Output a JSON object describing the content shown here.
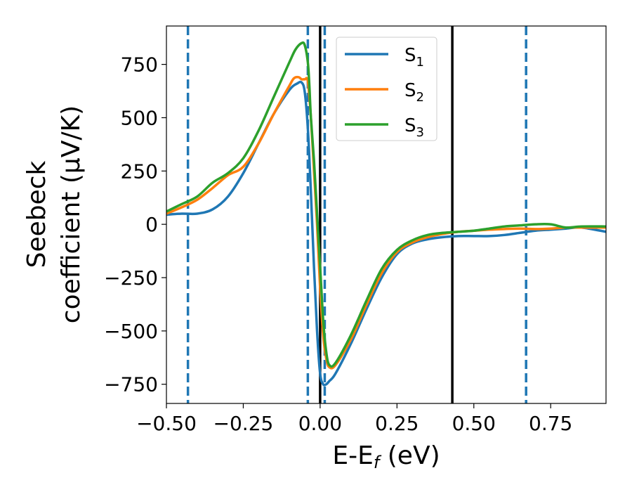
{
  "chart_data": {
    "type": "line",
    "xlabel": "E-E",
    "xlabel_sub": "f",
    "xlabel_unit": " (eV)",
    "ylabel_line1": "Seebeck",
    "ylabel_line2": "coefficient  (μV/K)",
    "xlim": [
      -0.5,
      0.93
    ],
    "ylim": [
      -840,
      930
    ],
    "xticks": [
      -0.5,
      -0.25,
      0.0,
      0.25,
      0.5,
      0.75
    ],
    "xtick_labels": [
      "−0.50",
      "−0.25",
      "0.00",
      "0.25",
      "0.50",
      "0.75"
    ],
    "yticks": [
      750,
      500,
      250,
      0,
      -250,
      -500,
      -750
    ],
    "ytick_labels": [
      "750",
      "500",
      "250",
      "0",
      "−250",
      "−500",
      "−750"
    ],
    "vlines_solid": [
      0.0,
      0.43
    ],
    "vlines_dashed": [
      -0.43,
      -0.04,
      0.015,
      0.67
    ],
    "legend_position": "top-center",
    "series": [
      {
        "name": "S",
        "sub": "1",
        "color": "#1f77b4",
        "x": [
          -0.5,
          -0.45,
          -0.4,
          -0.35,
          -0.3,
          -0.25,
          -0.2,
          -0.15,
          -0.1,
          -0.075,
          -0.06,
          -0.05,
          -0.04,
          -0.03,
          -0.02,
          -0.01,
          0.0,
          0.01,
          0.02,
          0.03,
          0.05,
          0.1,
          0.15,
          0.2,
          0.25,
          0.3,
          0.35,
          0.4,
          0.45,
          0.5,
          0.55,
          0.6,
          0.65,
          0.7,
          0.75,
          0.8,
          0.85,
          0.93
        ],
        "y": [
          45,
          50,
          50,
          70,
          130,
          240,
          380,
          520,
          630,
          660,
          665,
          620,
          450,
          150,
          -200,
          -500,
          -700,
          -750,
          -750,
          -735,
          -700,
          -560,
          -400,
          -250,
          -140,
          -90,
          -70,
          -60,
          -55,
          -55,
          -55,
          -50,
          -40,
          -30,
          -25,
          -20,
          -15,
          -35
        ]
      },
      {
        "name": "S",
        "sub": "2",
        "color": "#ff7f0e",
        "x": [
          -0.5,
          -0.45,
          -0.4,
          -0.35,
          -0.3,
          -0.25,
          -0.2,
          -0.15,
          -0.1,
          -0.085,
          -0.07,
          -0.06,
          -0.05,
          -0.04,
          -0.03,
          -0.02,
          -0.01,
          0.0,
          0.01,
          0.02,
          0.03,
          0.05,
          0.1,
          0.15,
          0.2,
          0.25,
          0.3,
          0.35,
          0.4,
          0.45,
          0.5,
          0.55,
          0.6,
          0.65,
          0.7,
          0.75,
          0.8,
          0.85,
          0.93
        ],
        "y": [
          50,
          80,
          115,
          170,
          230,
          270,
          380,
          520,
          650,
          685,
          690,
          680,
          680,
          670,
          500,
          250,
          0,
          -300,
          -520,
          -630,
          -670,
          -660,
          -540,
          -380,
          -230,
          -130,
          -85,
          -60,
          -45,
          -35,
          -30,
          -25,
          -22,
          -20,
          -22,
          -20,
          -15,
          -15,
          -15
        ]
      },
      {
        "name": "S",
        "sub": "3",
        "color": "#2ca02c",
        "x": [
          -0.5,
          -0.45,
          -0.4,
          -0.35,
          -0.3,
          -0.25,
          -0.2,
          -0.15,
          -0.1,
          -0.08,
          -0.06,
          -0.05,
          -0.04,
          -0.035,
          -0.03,
          -0.02,
          -0.01,
          0.0,
          0.01,
          0.02,
          0.03,
          0.05,
          0.1,
          0.15,
          0.2,
          0.25,
          0.3,
          0.35,
          0.4,
          0.45,
          0.5,
          0.55,
          0.6,
          0.65,
          0.7,
          0.75,
          0.8,
          0.85,
          0.93
        ],
        "y": [
          60,
          95,
          130,
          195,
          240,
          310,
          440,
          600,
          760,
          820,
          850,
          840,
          760,
          650,
          500,
          300,
          50,
          -200,
          -450,
          -600,
          -660,
          -650,
          -520,
          -360,
          -210,
          -120,
          -75,
          -50,
          -40,
          -35,
          -30,
          -20,
          -10,
          -5,
          0,
          0,
          -15,
          -10,
          -10
        ]
      }
    ]
  }
}
